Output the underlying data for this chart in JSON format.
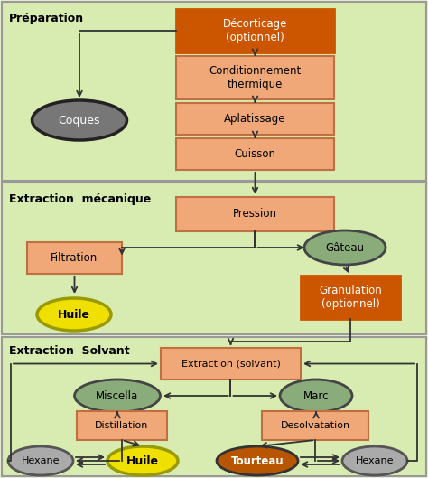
{
  "bg_color": "#e8f0d0",
  "section_green": "#d8ebb0",
  "section_edge": "#999999",
  "box_dark_orange": "#cc5500",
  "box_light_orange": "#f0a878",
  "box_edge_orange": "#c07040",
  "ellipse_dark_gray": "#777777",
  "ellipse_green": "#8aab7a",
  "ellipse_yellow": "#f0e000",
  "ellipse_brown": "#b85500",
  "ellipse_silver": "#aaaaaa",
  "arrow_color": "#333333",
  "text_dark": "#111111",
  "text_white": "#ffffff",
  "section_labels": {
    "preparation": "Préparation",
    "mecanique": "Extraction  mécanique",
    "solvant": "Extraction  Solvant"
  }
}
